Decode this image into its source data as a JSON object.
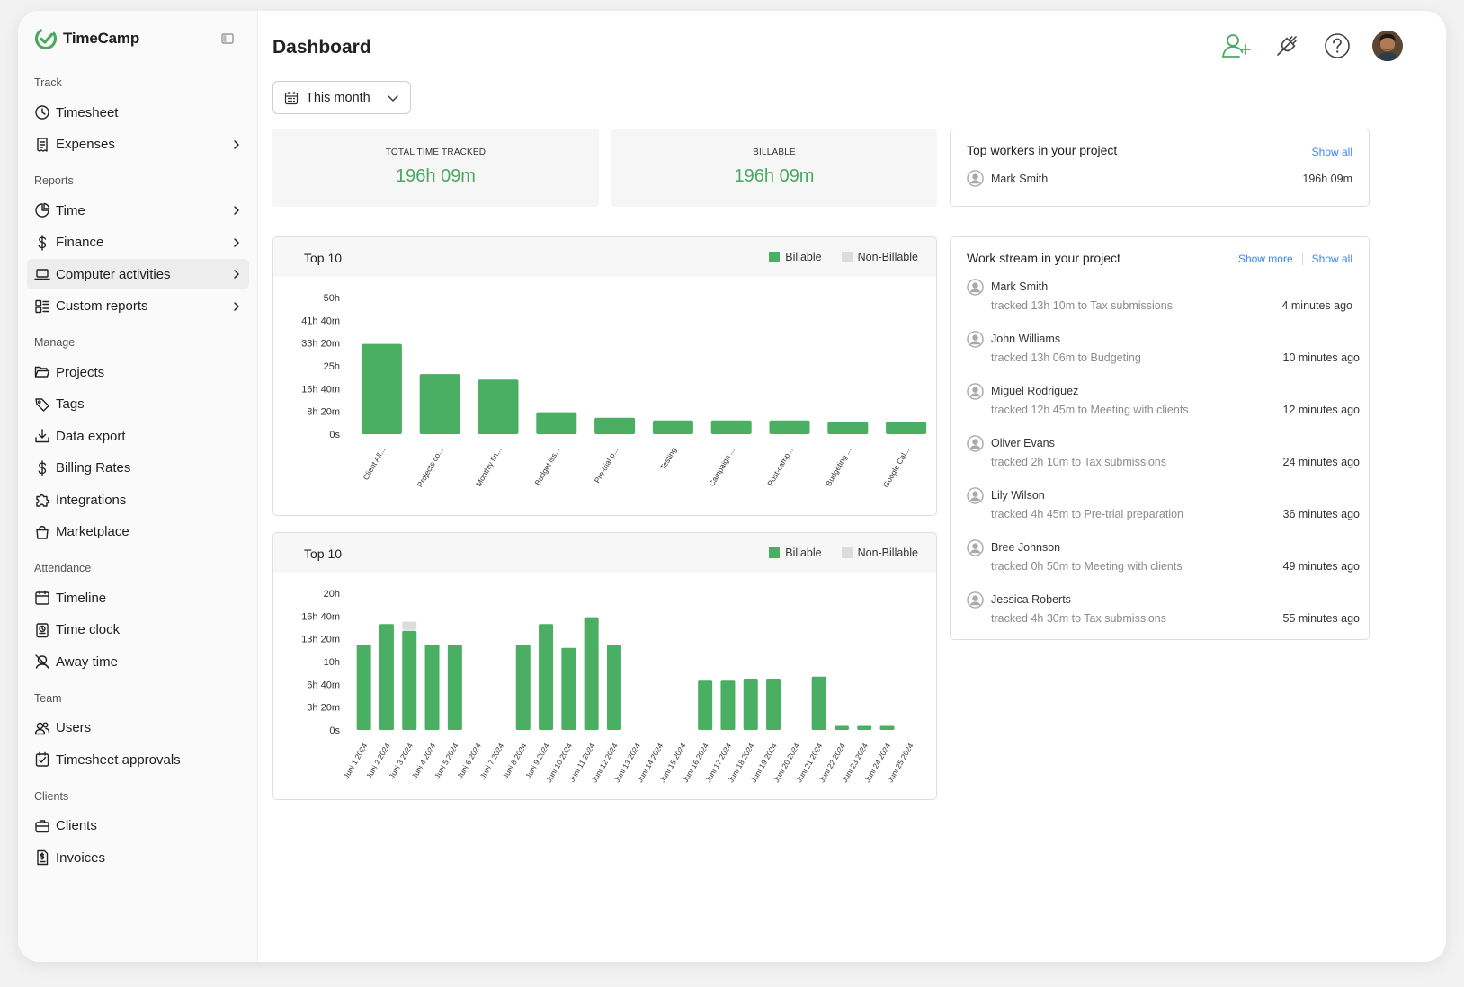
{
  "brand": {
    "name": "TimeCamp",
    "color": "#4aa862"
  },
  "sidebar": {
    "sections": [
      {
        "title": "Track",
        "items": [
          {
            "label": "Timesheet",
            "icon": "clock-icon",
            "chev": false
          },
          {
            "label": "Expenses",
            "icon": "receipt-icon",
            "chev": true
          }
        ]
      },
      {
        "title": "Reports",
        "items": [
          {
            "label": "Time",
            "icon": "pie-chart-icon",
            "chev": true
          },
          {
            "label": "Finance",
            "icon": "dollar-icon",
            "chev": true
          },
          {
            "label": "Computer activities",
            "icon": "laptop-icon",
            "chev": true,
            "active": true
          },
          {
            "label": "Custom reports",
            "icon": "grid-icon",
            "chev": true
          }
        ]
      },
      {
        "title": "Manage",
        "items": [
          {
            "label": "Projects",
            "icon": "folder-icon",
            "chev": false
          },
          {
            "label": "Tags",
            "icon": "tag-icon",
            "chev": false
          },
          {
            "label": "Data export",
            "icon": "download-icon",
            "chev": false
          },
          {
            "label": "Billing Rates",
            "icon": "dollar-icon",
            "chev": false
          },
          {
            "label": "Integrations",
            "icon": "puzzle-icon",
            "chev": false
          },
          {
            "label": "Marketplace",
            "icon": "bag-icon",
            "chev": false
          }
        ]
      },
      {
        "title": "Attendance",
        "items": [
          {
            "label": "Timeline",
            "icon": "calendar-icon",
            "chev": false
          },
          {
            "label": "Time clock",
            "icon": "time-clock-icon",
            "chev": false
          },
          {
            "label": "Away time",
            "icon": "away-icon",
            "chev": false
          }
        ]
      },
      {
        "title": "Team",
        "items": [
          {
            "label": "Users",
            "icon": "users-icon",
            "chev": false
          },
          {
            "label": "Timesheet approvals",
            "icon": "check-square-icon",
            "chev": false
          }
        ]
      },
      {
        "title": "Clients",
        "items": [
          {
            "label": "Clients",
            "icon": "briefcase-icon",
            "chev": false
          },
          {
            "label": "Invoices",
            "icon": "invoice-icon",
            "chev": false
          }
        ]
      }
    ]
  },
  "header": {
    "title": "Dashboard"
  },
  "filter": {
    "label": "This month"
  },
  "stats": [
    {
      "caption": "TOTAL TIME TRACKED",
      "value": "196h 09m"
    },
    {
      "caption": "BILLABLE",
      "value": "196h 09m"
    }
  ],
  "top_workers": {
    "title": "Top workers in your project",
    "show_all": "Show all",
    "rows": [
      {
        "name": "Mark Smith",
        "time": "196h 09m"
      }
    ]
  },
  "work_stream": {
    "title": "Work stream in your project",
    "show_more": "Show more",
    "show_all": "Show all",
    "items": [
      {
        "name": "Mark Smith",
        "desc": "tracked 13h 10m to Tax submissions",
        "ago": "4 minutes ago"
      },
      {
        "name": "John Williams",
        "desc": "tracked 13h 06m to Budgeting",
        "ago": "10 minutes ago"
      },
      {
        "name": "Miguel Rodriguez",
        "desc": "tracked 12h 45m to Meeting with clients",
        "ago": "12 minutes ago"
      },
      {
        "name": "Oliver Evans",
        "desc": "tracked 2h 10m to Tax submissions",
        "ago": "24 minutes ago"
      },
      {
        "name": "Lily Wilson",
        "desc": "tracked 4h 45m to Pre-trial preparation",
        "ago": "36 minutes ago"
      },
      {
        "name": "Bree Johnson",
        "desc": "tracked 0h 50m to Meeting with clients",
        "ago": "49 minutes ago"
      },
      {
        "name": "Jessica Roberts",
        "desc": "tracked 4h 30m to Tax submissions",
        "ago": "55 minutes ago"
      }
    ]
  },
  "legend": {
    "billable": "Billable",
    "non_billable": "Non-Billable",
    "billable_color": "#4aaf62",
    "non_billable_color": "#dcdcdc"
  },
  "chart_data": [
    {
      "type": "bar",
      "title": "Top 10",
      "y_ticks": [
        "50h",
        "41h 40m",
        "33h 20m",
        "25h",
        "16h 40m",
        "8h 20m",
        "0s"
      ],
      "ylim": [
        0,
        50
      ],
      "categories": [
        "Client All...",
        "Projects co...",
        "Monthly fin...",
        "Budget iss...",
        "Pre-trial p...",
        "Testing",
        "Campaign ...",
        "Post-camp...",
        "Budgeting ...",
        "Google Cal..."
      ],
      "series": [
        {
          "name": "Billable",
          "values": [
            33,
            22,
            20,
            8,
            6,
            5,
            5,
            5,
            4.5,
            4.5
          ]
        },
        {
          "name": "Non-Billable",
          "values": [
            0,
            0,
            0,
            0,
            0,
            0,
            0,
            0,
            0,
            0
          ]
        }
      ]
    },
    {
      "type": "bar",
      "title": "Top 10",
      "y_ticks": [
        "20h",
        "16h 40m",
        "13h 20m",
        "10h",
        "6h 40m",
        "3h 20m",
        "0s"
      ],
      "ylim": [
        0,
        20
      ],
      "categories": [
        "Juni 1 2024",
        "Juni 2 2024",
        "Juni 3 2024",
        "Juni 4 2024",
        "Juni 5 2024",
        "Juni 6 2024",
        "Juni 7 2024",
        "Juni 8 2024",
        "Juni 9 2024",
        "Juni 10 2024",
        "Juni 11 2024",
        "Juni 12 2024",
        "Juni 13 2024",
        "Juni 14 2024",
        "Juni 15 2024",
        "Juni 16 2024",
        "Juni 17 2024",
        "Juni 18 2024",
        "Juni 19 2024",
        "Juni 20 2024",
        "Juni 21 2024",
        "Juni 22 2024",
        "Juni 23 2024",
        "Juni 24 2024",
        "Juni 25 2024"
      ],
      "series": [
        {
          "name": "Billable",
          "values": [
            12.5,
            15.5,
            14.5,
            12.5,
            12.5,
            0,
            0,
            12.5,
            15.5,
            12,
            16.5,
            12.5,
            0,
            0,
            0,
            7.2,
            7.2,
            7.5,
            7.5,
            0,
            7.8,
            0.6,
            0.6,
            0.6,
            0
          ]
        },
        {
          "name": "Non-Billable",
          "values": [
            0,
            0,
            1.2,
            0,
            0,
            0,
            0,
            0,
            0,
            0,
            0,
            0,
            0,
            0,
            0,
            0,
            0,
            0,
            0,
            0,
            0,
            0,
            0,
            0,
            0
          ]
        }
      ]
    }
  ]
}
